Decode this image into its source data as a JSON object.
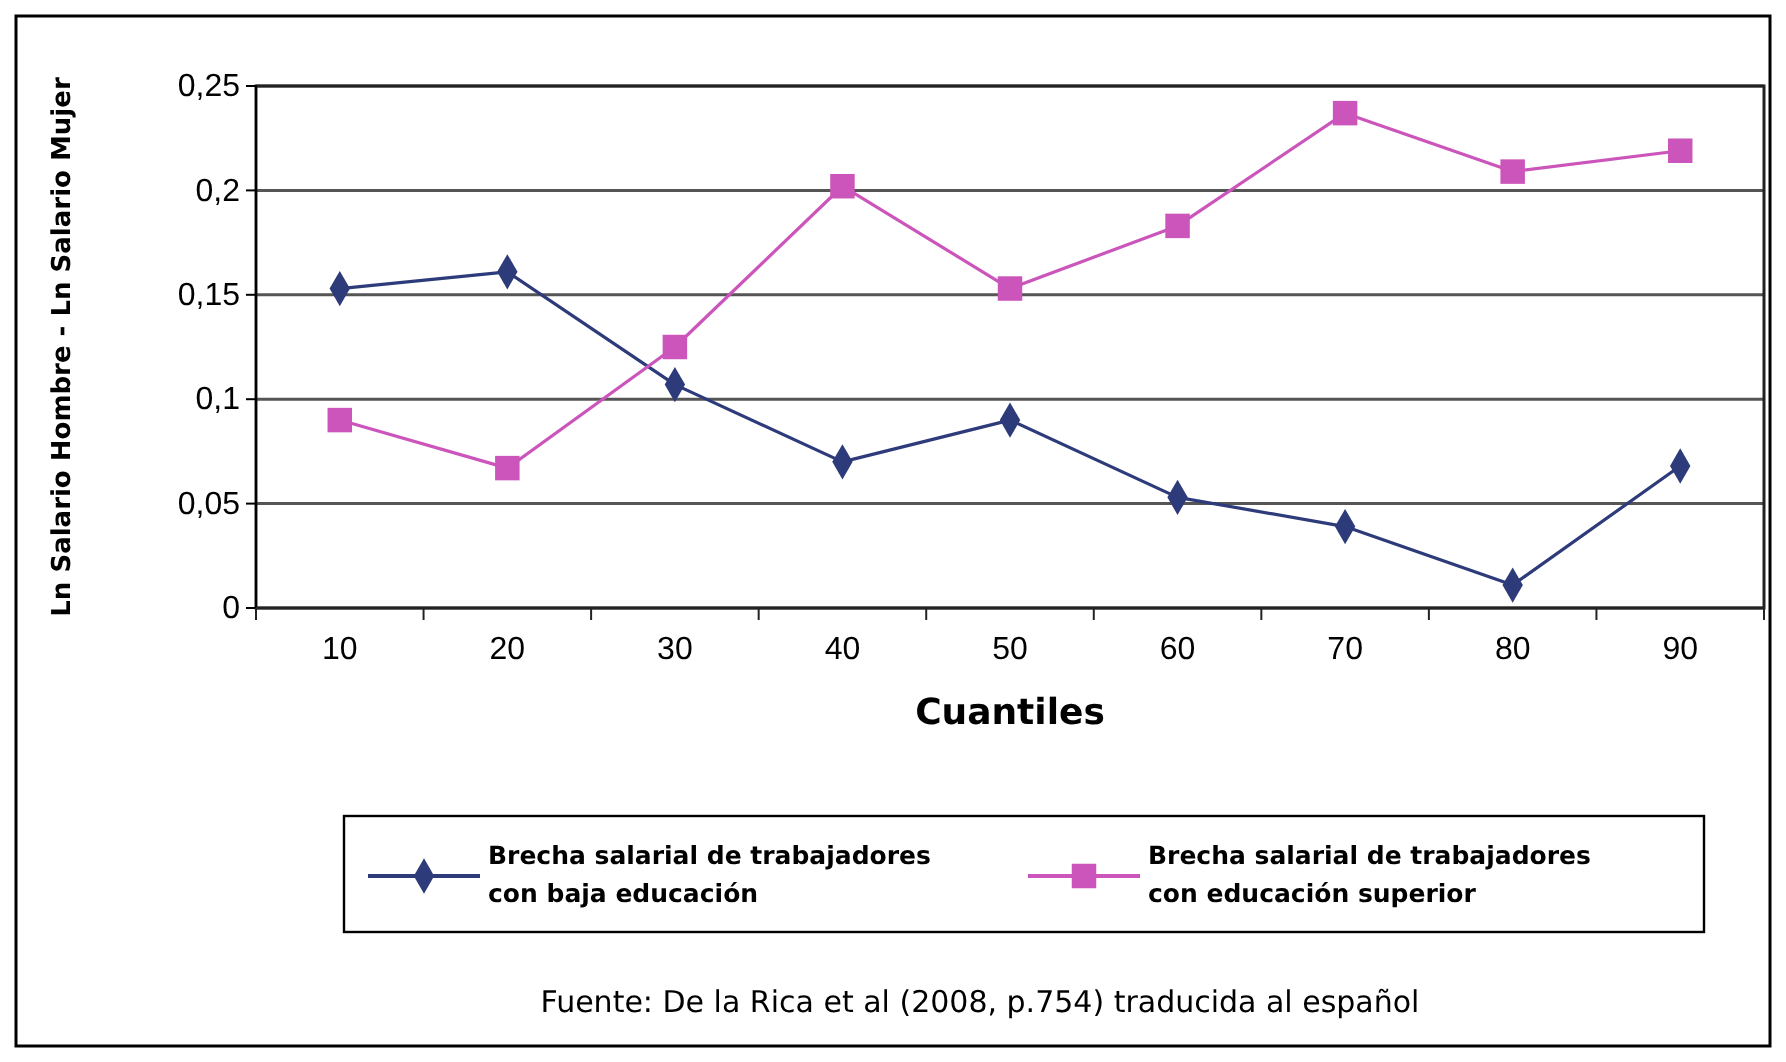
{
  "chart_data": {
    "type": "line",
    "categories": [
      "10",
      "20",
      "30",
      "40",
      "50",
      "60",
      "70",
      "80",
      "90"
    ],
    "series": [
      {
        "name": "Brecha salarial de trabajadores con baja educación",
        "color": "#2e3b7a",
        "marker": "diamond",
        "values": [
          0.153,
          0.161,
          0.107,
          0.07,
          0.09,
          0.053,
          0.039,
          0.011,
          0.068
        ]
      },
      {
        "name": "Brecha salarial de trabajadores con educación superior",
        "color": "#cc55bb",
        "marker": "square",
        "values": [
          0.09,
          0.067,
          0.125,
          0.202,
          0.153,
          0.183,
          0.237,
          0.209,
          0.219
        ]
      }
    ],
    "xlabel": "Cuantiles",
    "ylabel": "Ln Salario Hombre - Ln Salario Mujer",
    "ylim": [
      0,
      0.25
    ],
    "yticks": [
      {
        "value": 0,
        "label": "0"
      },
      {
        "value": 0.05,
        "label": "0,05"
      },
      {
        "value": 0.1,
        "label": "0,1"
      },
      {
        "value": 0.15,
        "label": "0,15"
      },
      {
        "value": 0.2,
        "label": "0,2"
      },
      {
        "value": 0.25,
        "label": "0,25"
      }
    ],
    "grid": "y",
    "legend": "bottom",
    "line_style": "solid",
    "annotations": [
      "Fuente: De la Rica et al (2008, p.754) traducida al español"
    ]
  }
}
